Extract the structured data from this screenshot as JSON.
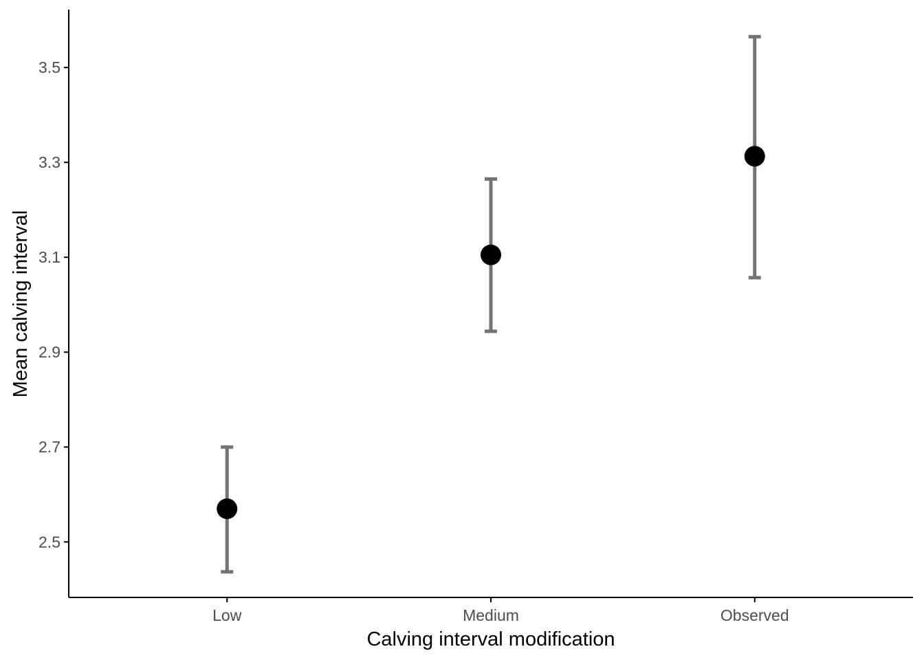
{
  "chart_data": {
    "type": "scatter",
    "title": "",
    "xlabel": "Calving interval modification",
    "ylabel": "Mean calving interval",
    "categories": [
      "Low",
      "Medium",
      "Observed"
    ],
    "means": [
      2.57,
      3.105,
      3.313
    ],
    "error_low": [
      2.437,
      2.944,
      3.057
    ],
    "error_high": [
      2.7,
      3.265,
      3.565
    ],
    "ylim": [
      2.383,
      3.622
    ],
    "yticks": [
      2.5,
      2.7,
      2.9,
      3.1,
      3.3,
      3.5
    ],
    "ytick_labels": [
      "2.5",
      "2.7",
      "2.9",
      "3.1",
      "3.3",
      "3.5"
    ],
    "grid": false,
    "legend": "none",
    "colors": {
      "point": "#000000",
      "errorbar": "#737373",
      "axis": "#000000",
      "tick_label": "#4d4d4d"
    }
  }
}
